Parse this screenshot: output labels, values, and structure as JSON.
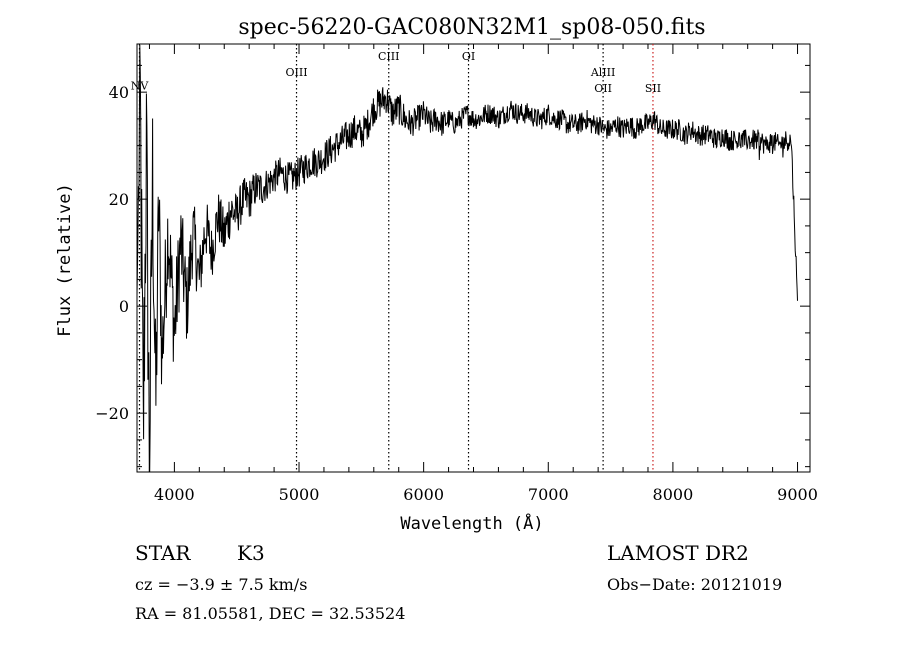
{
  "chart_data": {
    "type": "line",
    "title": "spec-56220-GAC080N32M1_sp08-050.fits",
    "xlabel": "Wavelength (Å)",
    "ylabel": "Flux (relative)",
    "xlim": [
      3700,
      9100
    ],
    "ylim": [
      -31,
      49
    ],
    "x_ticks": [
      4000,
      5000,
      6000,
      7000,
      8000,
      9000
    ],
    "y_ticks": [
      -20,
      0,
      20,
      40
    ],
    "x_tick_labels": [
      "4000",
      "5000",
      "6000",
      "7000",
      "8000",
      "9000"
    ],
    "y_tick_labels": [
      "−20",
      "0",
      "20",
      "40"
    ],
    "grid": false,
    "line_color": "#000000",
    "series": [
      {
        "name": "spectrum",
        "x": [
          3700,
          3725,
          3750,
          3775,
          3800,
          3825,
          3850,
          3875,
          3900,
          3950,
          4000,
          4050,
          4100,
          4150,
          4200,
          4250,
          4300,
          4350,
          4400,
          4450,
          4500,
          4550,
          4600,
          4650,
          4700,
          4750,
          4800,
          4850,
          4900,
          4950,
          5000,
          5050,
          5100,
          5150,
          5200,
          5250,
          5300,
          5350,
          5400,
          5450,
          5500,
          5550,
          5600,
          5650,
          5700,
          5750,
          5800,
          5850,
          5900,
          5950,
          6000,
          6050,
          6100,
          6150,
          6200,
          6250,
          6300,
          6350,
          6400,
          6450,
          6500,
          6550,
          6600,
          6650,
          6700,
          6750,
          6800,
          6850,
          6900,
          6950,
          7000,
          7050,
          7100,
          7150,
          7200,
          7250,
          7300,
          7350,
          7400,
          7450,
          7500,
          7550,
          7600,
          7650,
          7700,
          7750,
          7800,
          7850,
          7900,
          7950,
          8000,
          8050,
          8100,
          8150,
          8200,
          8250,
          8300,
          8350,
          8400,
          8450,
          8500,
          8550,
          8600,
          8650,
          8700,
          8750,
          8800,
          8850,
          8900,
          8950,
          9000
        ],
        "values": [
          2,
          40,
          -25,
          30,
          -30,
          25,
          -20,
          20,
          -10,
          15,
          -5,
          12,
          0,
          14,
          5,
          15,
          10,
          17,
          13,
          18,
          17,
          20,
          20,
          22,
          22,
          23,
          24,
          25,
          24,
          24,
          25,
          26,
          27,
          27,
          28,
          29,
          30,
          31,
          32,
          33,
          32,
          34,
          37,
          38,
          39,
          36,
          37,
          35,
          34,
          35,
          36,
          34,
          35,
          34,
          35,
          34,
          35,
          36,
          35,
          35,
          36,
          36,
          35,
          36,
          37,
          36,
          36,
          36,
          35,
          35,
          36,
          35,
          35,
          34,
          34,
          34,
          35,
          34,
          34,
          33,
          33,
          34,
          33,
          34,
          33,
          34,
          34,
          35,
          33,
          33,
          33,
          33,
          32,
          33,
          32,
          32,
          32,
          31,
          32,
          31,
          31,
          31,
          31,
          31,
          31,
          30,
          31,
          30,
          31,
          31,
          1
        ],
        "noise": [
          2,
          20,
          20,
          20,
          18,
          16,
          14,
          12,
          10,
          10,
          9,
          9,
          8,
          7,
          6,
          6,
          5,
          5,
          5,
          5,
          4,
          4,
          4,
          3.5,
          3.5,
          3,
          3,
          3,
          3,
          3,
          3,
          3,
          3,
          3,
          3,
          3,
          3,
          3,
          3,
          3,
          3,
          3,
          3,
          3,
          3,
          3,
          3,
          3,
          2.5,
          2.5,
          2.5,
          2.5,
          2.5,
          2.5,
          2,
          2,
          2,
          2,
          2,
          2,
          2,
          2,
          2,
          2,
          2,
          2,
          2,
          2,
          2,
          2,
          2,
          2,
          2,
          2,
          2,
          2,
          2,
          2,
          2,
          2,
          2,
          2,
          2,
          2,
          2,
          2,
          2,
          2,
          2,
          2,
          2,
          2,
          2,
          2,
          2,
          2,
          2,
          2,
          2,
          2,
          2,
          2,
          2,
          2,
          2,
          2,
          2,
          2,
          2,
          2,
          2
        ]
      }
    ],
    "annotations": [
      {
        "label": "NV",
        "x": 3720,
        "label_y": 40.5,
        "line_color": "#000000"
      },
      {
        "label": "OIII",
        "x": 4980,
        "label_y": 43,
        "line_color": "#000000"
      },
      {
        "label": "CIII",
        "x": 5720,
        "label_y": 46,
        "line_color": "#000000"
      },
      {
        "label": "OI",
        "x": 6360,
        "label_y": 46,
        "line_color": "#000000"
      },
      {
        "label": "AlIII",
        "x": 7440,
        "label_y": 43,
        "line_color": "#000000"
      },
      {
        "label": "OII",
        "x": 7440,
        "label_y": 40,
        "line_color": "#000000"
      },
      {
        "label": "SII",
        "x": 7840,
        "label_y": 40,
        "line_color": "#cc2222"
      }
    ]
  },
  "info": {
    "object_class": "STAR",
    "subclass": "K3",
    "survey": "LAMOST DR2",
    "cz": "cz = −3.9 ± 7.5 km/s",
    "obs_date": "Obs−Date: 20121019",
    "coords": "RA =  81.05581, DEC =  32.53524"
  }
}
